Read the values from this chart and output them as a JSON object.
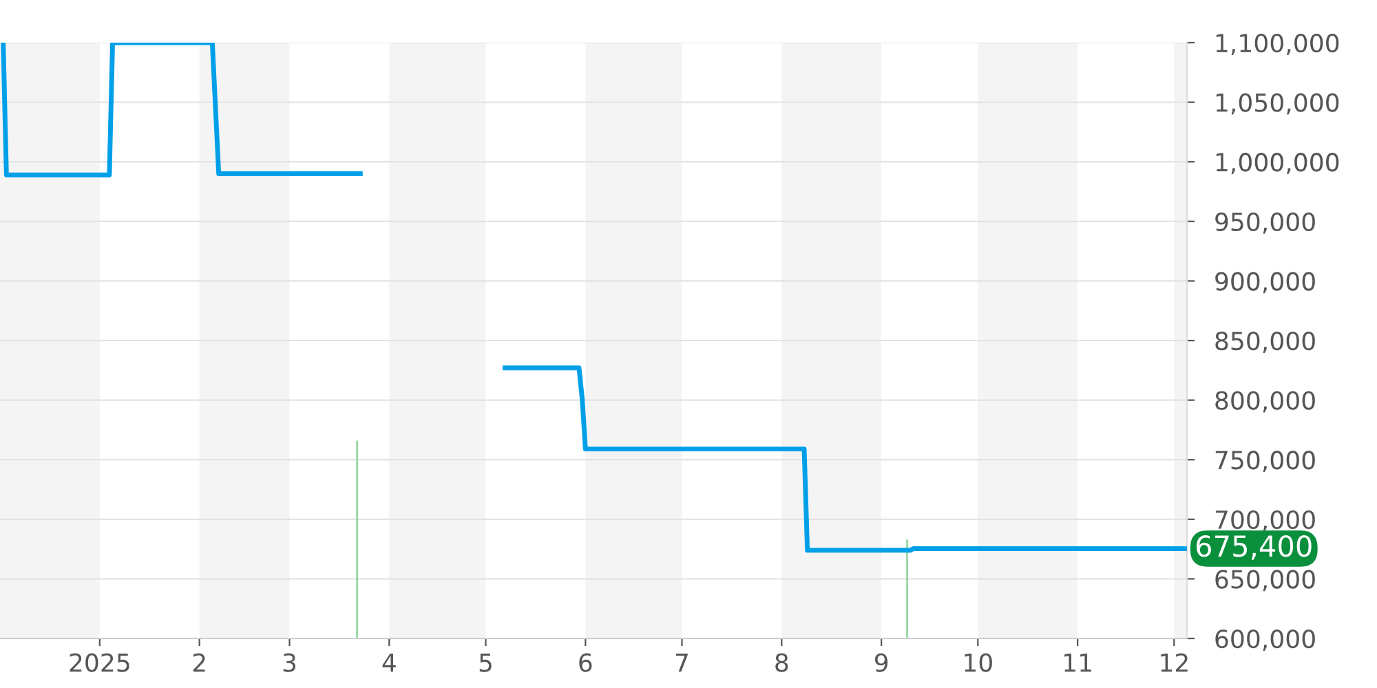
{
  "chart_data": {
    "type": "line",
    "xlim": [
      "2024-12-01",
      "2025-12-05"
    ],
    "ylim": [
      600000,
      1100000
    ],
    "yticks": [
      {
        "value": 600000,
        "label": "600,000"
      },
      {
        "value": 650000,
        "label": "650,000"
      },
      {
        "value": 700000,
        "label": "700,000"
      },
      {
        "value": 750000,
        "label": "750,000"
      },
      {
        "value": 800000,
        "label": "800,000"
      },
      {
        "value": 850000,
        "label": "850,000"
      },
      {
        "value": 900000,
        "label": "900,000"
      },
      {
        "value": 950000,
        "label": "950,000"
      },
      {
        "value": 1000000,
        "label": "1,000,000"
      },
      {
        "value": 1050000,
        "label": "1,050,000"
      },
      {
        "value": 1100000,
        "label": "1,100,000"
      }
    ],
    "xticks": [
      {
        "value": "2025-01-01",
        "label": "2025"
      },
      {
        "value": "2025-02-01",
        "label": "2"
      },
      {
        "value": "2025-03-01",
        "label": "3"
      },
      {
        "value": "2025-04-01",
        "label": "4"
      },
      {
        "value": "2025-05-01",
        "label": "5"
      },
      {
        "value": "2025-06-01",
        "label": "6"
      },
      {
        "value": "2025-07-01",
        "label": "7"
      },
      {
        "value": "2025-08-01",
        "label": "8"
      },
      {
        "value": "2025-09-01",
        "label": "9"
      },
      {
        "value": "2025-10-01",
        "label": "10"
      },
      {
        "value": "2025-11-01",
        "label": "11"
      },
      {
        "value": "2025-12-01",
        "label": "12"
      }
    ],
    "grid": "y",
    "bands": [
      {
        "axis": "x",
        "from": "2024-12-01",
        "to": "2025-01-01",
        "color": "#f4f4f4"
      },
      {
        "axis": "x",
        "from": "2025-02-01",
        "to": "2025-03-01",
        "color": "#f4f4f4"
      },
      {
        "axis": "x",
        "from": "2025-04-01",
        "to": "2025-05-01",
        "color": "#f4f4f4"
      },
      {
        "axis": "x",
        "from": "2025-06-01",
        "to": "2025-07-01",
        "color": "#f4f4f4"
      },
      {
        "axis": "x",
        "from": "2025-08-01",
        "to": "2025-09-01",
        "color": "#f4f4f4"
      },
      {
        "axis": "x",
        "from": "2025-10-01",
        "to": "2025-11-01",
        "color": "#f4f4f4"
      },
      {
        "axis": "x",
        "from": "2025-12-01",
        "to": "2025-12-05",
        "color": "#f4f4f4"
      }
    ],
    "series": [
      {
        "type": "bar",
        "color": "#7fd18f",
        "x": [
          "2025-03-22",
          "2025-09-09"
        ],
        "base": [
          600000,
          600000
        ],
        "values": [
          166000,
          83000
        ]
      },
      {
        "color": "#00a0e9",
        "x": [
          "2024-12-02",
          "2024-12-03",
          "2025-01-04",
          "2025-01-05",
          "2025-02-05",
          "2025-02-07",
          "2025-03-23",
          "2025-04-15",
          "2025-05-07",
          "2025-05-30",
          "2025-05-31",
          "2025-06-01",
          "2025-08-08",
          "2025-08-09",
          "2025-09-10",
          "2025-09-11",
          "2025-12-05"
        ],
        "values": [
          1100000,
          989000,
          989000,
          1100000,
          1100000,
          990000,
          990000,
          null,
          827000,
          827000,
          801000,
          759000,
          759000,
          674000,
          674000,
          675400,
          675400
        ]
      }
    ],
    "annotations": [
      {
        "text": "675,400",
        "x": "2025-12-05",
        "y": 675400
      }
    ]
  }
}
